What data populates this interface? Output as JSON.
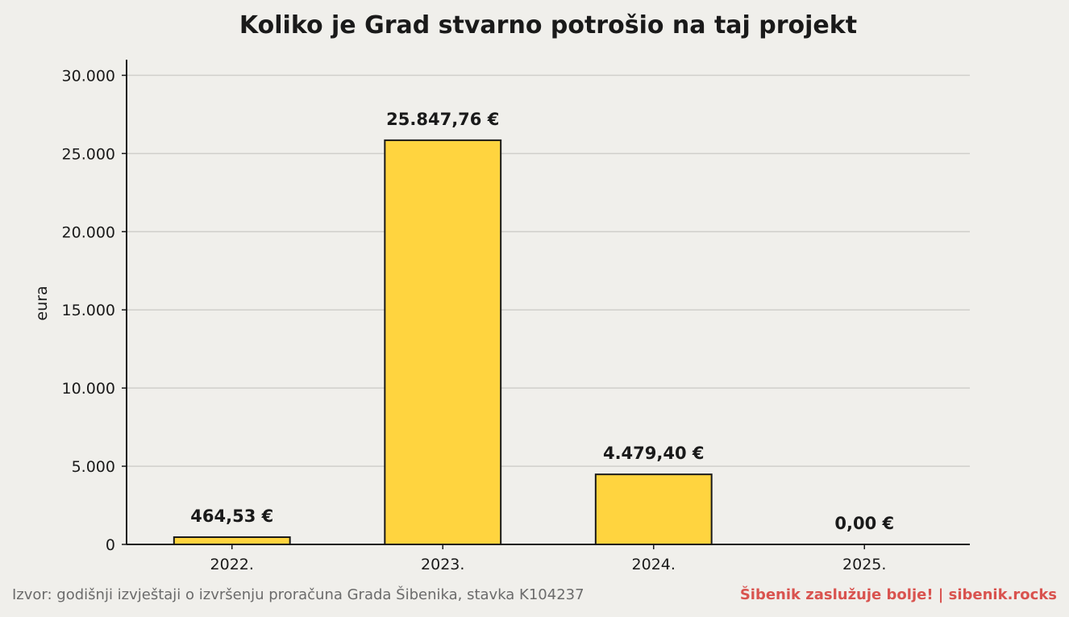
{
  "chart_data": {
    "type": "bar",
    "title": "Koliko je Grad stvarno potrošio na taj projekt",
    "ylabel": "eura",
    "xlabel": "",
    "categories": [
      "2022.",
      "2023.",
      "2024.",
      "2025."
    ],
    "values": [
      464.53,
      25847.76,
      4479.4,
      0
    ],
    "value_labels": [
      "464,53 €",
      "25.847,76 €",
      "4.479,40 €",
      "0,00 €"
    ],
    "yticks": [
      0,
      5000,
      10000,
      15000,
      20000,
      25000,
      30000
    ],
    "ytick_labels": [
      "0",
      "5.000",
      "10.000",
      "15.000",
      "20.000",
      "25.000",
      "30.000"
    ],
    "ylim": [
      0,
      31000
    ],
    "grid": "horizontal",
    "colors": {
      "bar_fill": "#ffd43f",
      "bar_stroke": "#1a1a1a",
      "grid": "#d0cfcb",
      "axis": "#1a1a1a"
    }
  },
  "footer": {
    "source": "Izvor: godišnji izvještaji o izvršenju proračuna Grada Šibenika, stavka K104237",
    "brand": "Šibenik zaslužuje bolje!  |  sibenik.rocks",
    "brand_color": "#d9534f"
  }
}
